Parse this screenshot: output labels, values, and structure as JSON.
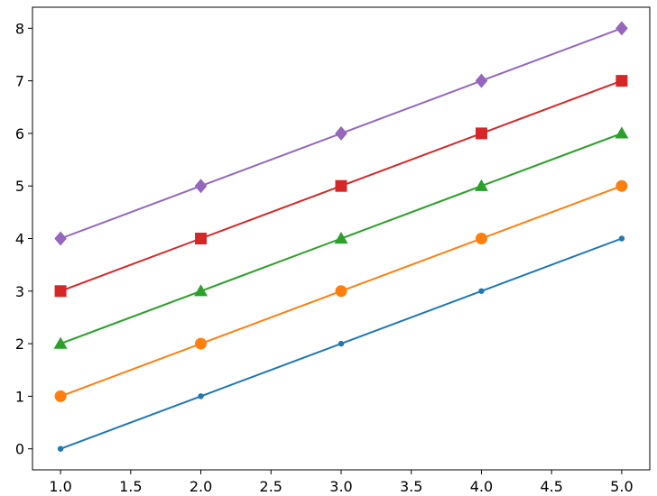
{
  "chart_data": {
    "type": "line",
    "title": "",
    "xlabel": "",
    "ylabel": "",
    "x": [
      1.0,
      2.0,
      3.0,
      4.0,
      5.0
    ],
    "xlim": [
      0.8,
      5.2
    ],
    "ylim": [
      -0.4,
      8.4
    ],
    "xticks": [
      "1.0",
      "1.5",
      "2.0",
      "2.5",
      "3.0",
      "3.5",
      "4.0",
      "4.5",
      "5.0"
    ],
    "xtick_values": [
      1.0,
      1.5,
      2.0,
      2.5,
      3.0,
      3.5,
      4.0,
      4.5,
      5.0
    ],
    "yticks": [
      "0",
      "1",
      "2",
      "3",
      "4",
      "5",
      "6",
      "7",
      "8"
    ],
    "ytick_values": [
      0,
      1,
      2,
      3,
      4,
      5,
      6,
      7,
      8
    ],
    "grid": false,
    "legend": "none",
    "series": [
      {
        "values": [
          0,
          1,
          2,
          3,
          4
        ],
        "color": "#1f77b4",
        "marker": "point"
      },
      {
        "values": [
          1,
          2,
          3,
          4,
          5
        ],
        "color": "#ff7f0e",
        "marker": "circle"
      },
      {
        "values": [
          2,
          3,
          4,
          5,
          6
        ],
        "color": "#2ca02c",
        "marker": "triangle"
      },
      {
        "values": [
          3,
          4,
          5,
          6,
          7
        ],
        "color": "#d62728",
        "marker": "square"
      },
      {
        "values": [
          4,
          5,
          6,
          7,
          8
        ],
        "color": "#9467bd",
        "marker": "diamond"
      }
    ]
  }
}
